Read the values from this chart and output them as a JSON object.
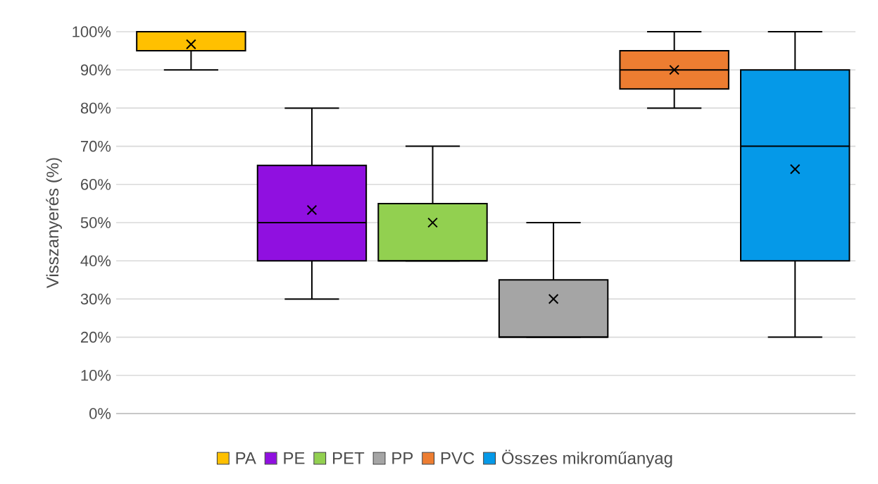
{
  "chart_data": {
    "type": "box",
    "ylabel": "Visszanyerés (%)",
    "categories": [
      null
    ],
    "ylim": [
      0,
      100
    ],
    "yticks": [
      {
        "value": 0,
        "label": "0%"
      },
      {
        "value": 10,
        "label": "10%"
      },
      {
        "value": 20,
        "label": "20%"
      },
      {
        "value": 30,
        "label": "30%"
      },
      {
        "value": 40,
        "label": "40%"
      },
      {
        "value": 50,
        "label": "50%"
      },
      {
        "value": 60,
        "label": "60%"
      },
      {
        "value": 70,
        "label": "70%"
      },
      {
        "value": 80,
        "label": "80%"
      },
      {
        "value": 90,
        "label": "90%"
      },
      {
        "value": 100,
        "label": "100%"
      }
    ],
    "grid": "y",
    "legend": "bottom",
    "marker": "cross",
    "series": [
      {
        "name": "PA",
        "color": "#ffc000",
        "boxes": [
          {
            "low": 90,
            "q1": 95,
            "median": 100,
            "q3": 100,
            "high": 100,
            "mean": 96.7
          }
        ]
      },
      {
        "name": "PE",
        "color": "#9010e0",
        "boxes": [
          {
            "low": 30,
            "q1": 40,
            "median": 50,
            "q3": 65,
            "high": 80,
            "mean": 53.3
          }
        ]
      },
      {
        "name": "PET",
        "color": "#92d050",
        "boxes": [
          {
            "low": 40,
            "q1": 40,
            "median": 40,
            "q3": 55,
            "high": 70,
            "mean": 50
          }
        ]
      },
      {
        "name": "PP",
        "color": "#a5a5a5",
        "boxes": [
          {
            "low": 20,
            "q1": 20,
            "median": 20,
            "q3": 35,
            "high": 50,
            "mean": 30
          }
        ]
      },
      {
        "name": "PVC",
        "color": "#ed7d31",
        "boxes": [
          {
            "low": 80,
            "q1": 85,
            "median": 90,
            "q3": 95,
            "high": 100,
            "mean": 90
          }
        ]
      },
      {
        "name": "Összes mikroműanyag",
        "color": "#0599e8",
        "boxes": [
          {
            "low": 20,
            "q1": 40,
            "median": 70,
            "q3": 90,
            "high": 100,
            "mean": 64
          }
        ]
      }
    ]
  }
}
